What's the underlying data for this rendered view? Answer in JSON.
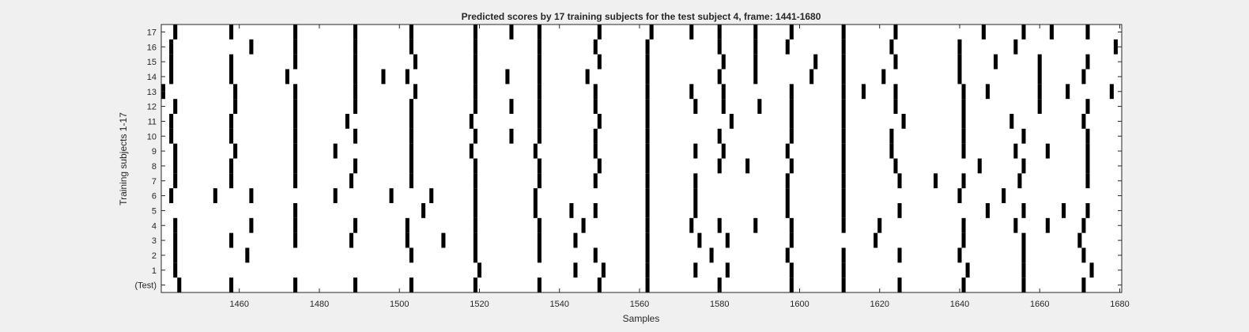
{
  "chart_data": {
    "type": "event_raster",
    "title": "Predicted scores by 17 training subjects for the test subject 4, frame: 1441-1680",
    "xlabel": "Samples",
    "ylabel": "Training subjects 1-17",
    "xlim": [
      1441,
      1680
    ],
    "xticks": [
      1460,
      1480,
      1500,
      1520,
      1540,
      1560,
      1580,
      1600,
      1620,
      1640,
      1660,
      1680
    ],
    "ytick_labels": [
      "(Test)",
      "1",
      "2",
      "3",
      "4",
      "5",
      "6",
      "7",
      "8",
      "9",
      "10",
      "11",
      "12",
      "13",
      "14",
      "15",
      "16",
      "17"
    ],
    "grid": false,
    "colors": {
      "background": "#f0f0f0",
      "axes": "#ffffff",
      "marks": "#000000",
      "text": "#262626"
    },
    "rows": [
      {
        "label": "(Test)",
        "events": [
          1445,
          1458,
          1474,
          1489,
          1503,
          1519,
          1535,
          1550,
          1562,
          1580,
          1598,
          1611,
          1625,
          1641,
          1656,
          1671
        ]
      },
      {
        "label": "1",
        "events": [
          1444,
          1520,
          1544,
          1551,
          1562,
          1574,
          1582,
          1598,
          1611,
          1642,
          1656,
          1673
        ]
      },
      {
        "label": "2",
        "events": [
          1444,
          1462,
          1503,
          1519,
          1535,
          1549,
          1562,
          1578,
          1597,
          1611,
          1625,
          1640,
          1656,
          1671
        ]
      },
      {
        "label": "3",
        "events": [
          1444,
          1458,
          1474,
          1488,
          1502,
          1511,
          1519,
          1535,
          1544,
          1562,
          1575,
          1582,
          1598,
          1619,
          1641,
          1656,
          1670
        ]
      },
      {
        "label": "4",
        "events": [
          1444,
          1463,
          1474,
          1489,
          1502,
          1519,
          1535,
          1546,
          1562,
          1573,
          1580,
          1589,
          1598,
          1611,
          1620,
          1641,
          1654,
          1662,
          1671
        ]
      },
      {
        "label": "5",
        "events": [
          1474,
          1506,
          1519,
          1534,
          1543,
          1549,
          1562,
          1574,
          1597,
          1611,
          1625,
          1647,
          1656,
          1666,
          1672
        ]
      },
      {
        "label": "6",
        "events": [
          1443,
          1454,
          1463,
          1484,
          1498,
          1508,
          1519,
          1534,
          1562,
          1574,
          1597,
          1611,
          1640,
          1651
        ]
      },
      {
        "label": "7",
        "events": [
          1444,
          1458,
          1474,
          1488,
          1503,
          1519,
          1535,
          1549,
          1562,
          1574,
          1597,
          1611,
          1625,
          1634,
          1641,
          1655,
          1672
        ]
      },
      {
        "label": "8",
        "events": [
          1444,
          1458,
          1474,
          1489,
          1503,
          1519,
          1535,
          1550,
          1562,
          1580,
          1587,
          1598,
          1611,
          1624,
          1645,
          1656,
          1672
        ]
      },
      {
        "label": "9",
        "events": [
          1444,
          1459,
          1474,
          1484,
          1503,
          1518,
          1534,
          1549,
          1562,
          1574,
          1581,
          1597,
          1611,
          1623,
          1641,
          1654,
          1662,
          1672
        ]
      },
      {
        "label": "10",
        "events": [
          1443,
          1458,
          1474,
          1489,
          1503,
          1519,
          1528,
          1535,
          1549,
          1562,
          1580,
          1598,
          1611,
          1623,
          1641,
          1656,
          1672
        ]
      },
      {
        "label": "11",
        "events": [
          1443,
          1458,
          1474,
          1487,
          1503,
          1518,
          1535,
          1550,
          1562,
          1583,
          1598,
          1611,
          1626,
          1641,
          1653,
          1671
        ]
      },
      {
        "label": "12",
        "events": [
          1444,
          1459,
          1474,
          1489,
          1503,
          1519,
          1528,
          1535,
          1549,
          1562,
          1574,
          1581,
          1590,
          1598,
          1611,
          1624,
          1641,
          1660,
          1672
        ]
      },
      {
        "label": "13",
        "events": [
          1441,
          1459,
          1474,
          1489,
          1504,
          1519,
          1535,
          1549,
          1562,
          1573,
          1581,
          1598,
          1611,
          1616,
          1624,
          1641,
          1647,
          1660,
          1667,
          1678
        ]
      },
      {
        "label": "14",
        "events": [
          1443,
          1458,
          1472,
          1489,
          1496,
          1502,
          1519,
          1527,
          1535,
          1547,
          1562,
          1580,
          1589,
          1603,
          1611,
          1621,
          1640,
          1660,
          1671
        ]
      },
      {
        "label": "15",
        "events": [
          1443,
          1458,
          1474,
          1489,
          1504,
          1519,
          1535,
          1550,
          1562,
          1581,
          1589,
          1604,
          1611,
          1624,
          1640,
          1649,
          1660,
          1672
        ]
      },
      {
        "label": "16",
        "events": [
          1443,
          1463,
          1474,
          1489,
          1503,
          1519,
          1535,
          1549,
          1562,
          1580,
          1589,
          1597,
          1611,
          1623,
          1640,
          1654,
          1679
        ]
      },
      {
        "label": "17",
        "events": [
          1444,
          1458,
          1474,
          1489,
          1503,
          1519,
          1528,
          1535,
          1550,
          1563,
          1573,
          1580,
          1589,
          1598,
          1611,
          1624,
          1646,
          1656,
          1663,
          1672
        ]
      }
    ]
  }
}
